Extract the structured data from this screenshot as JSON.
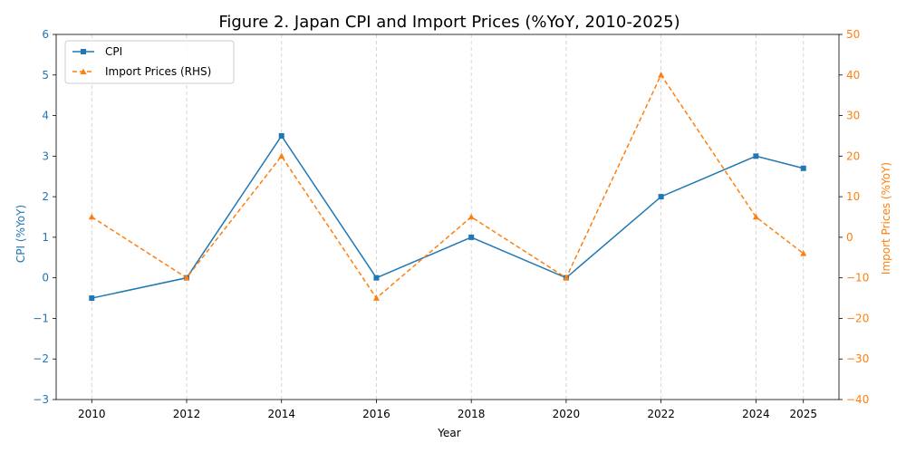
{
  "chart_data": {
    "type": "line",
    "title": "Figure 2. Japan CPI and Import Prices (%YoY, 2010-2025)",
    "xlabel": "Year",
    "ylabel_left": "CPI (%YoY)",
    "ylabel_right": "Import Prices (%YoY)",
    "x": [
      2010,
      2012,
      2014,
      2016,
      2018,
      2020,
      2022,
      2024,
      2025
    ],
    "x_ticks": [
      "2010",
      "2012",
      "2014",
      "2016",
      "2018",
      "2020",
      "2022",
      "2024",
      "2025"
    ],
    "ylim_left": [
      -3,
      6
    ],
    "y_ticks_left": [
      "−3",
      "−2",
      "−1",
      "0",
      "1",
      "2",
      "3",
      "4",
      "5",
      "6"
    ],
    "ylim_right": [
      -40,
      50
    ],
    "y_ticks_right": [
      "−40",
      "−30",
      "−20",
      "−10",
      "0",
      "10",
      "20",
      "30",
      "40",
      "50"
    ],
    "grid": "vertical-dashed",
    "legend_position": "top-left",
    "series": [
      {
        "name": "CPI",
        "axis": "left",
        "color": "#1f77b4",
        "style": "solid",
        "marker": "square",
        "values": [
          -0.5,
          0.0,
          3.5,
          0.0,
          1.0,
          0.0,
          2.0,
          3.0,
          2.7
        ]
      },
      {
        "name": "Import Prices (RHS)",
        "axis": "right",
        "color": "#ff7f0e",
        "style": "dashed",
        "marker": "triangle",
        "values": [
          5,
          -10,
          20,
          -15,
          5,
          -10,
          40,
          5,
          -4
        ]
      }
    ],
    "colors": {
      "left_axis": "#1f77b4",
      "right_axis": "#ff7f0e",
      "grid": "#cccccc"
    }
  }
}
